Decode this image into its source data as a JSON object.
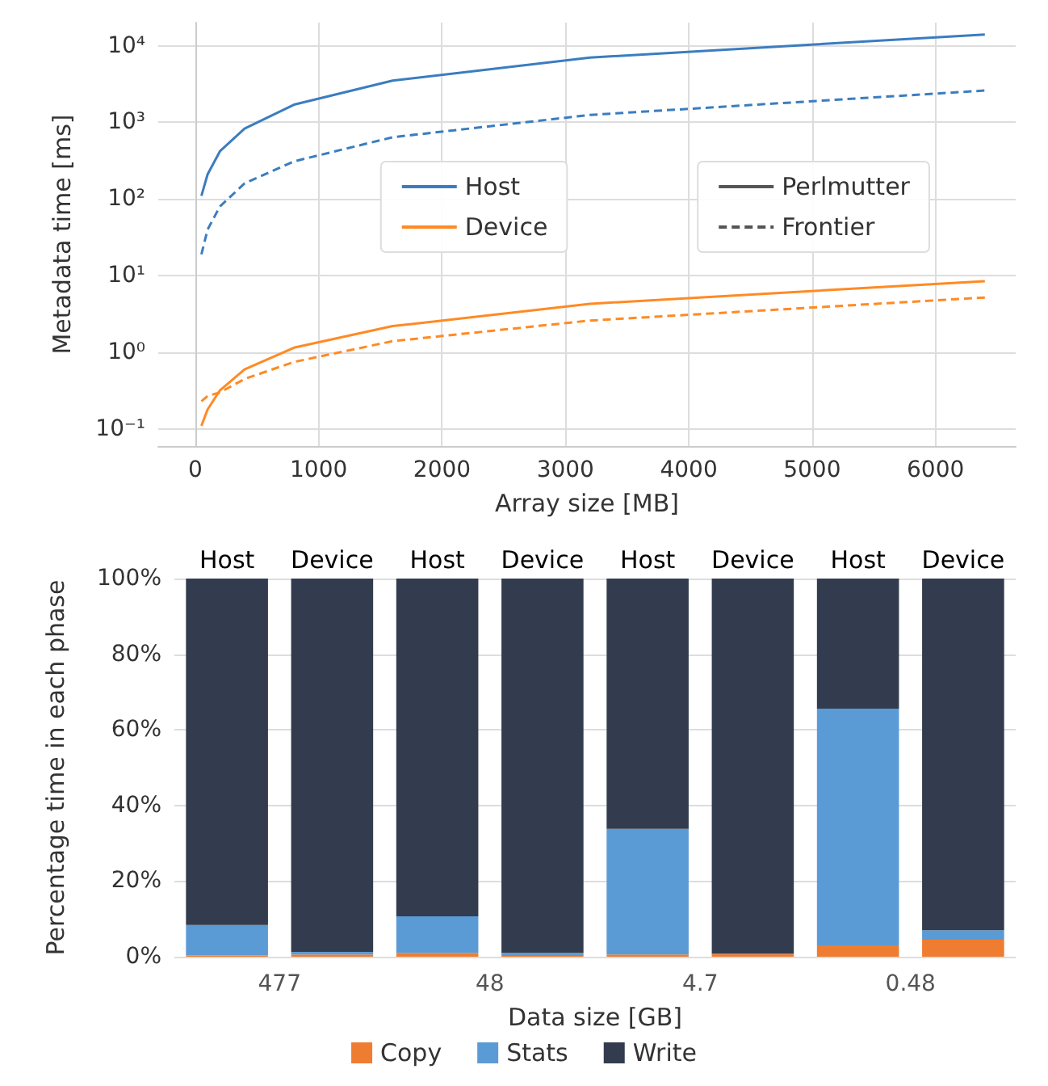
{
  "chart_data": [
    {
      "type": "line",
      "xlabel": "Array size [MB]",
      "ylabel": "Metadata time [ms]",
      "log": "y",
      "grid": true,
      "legend": "center",
      "marker": "none",
      "x": [
        50,
        100,
        200,
        400,
        800,
        1600,
        3200,
        6400
      ],
      "xlim": [
        -300,
        6650
      ],
      "xticks": [
        0,
        1000,
        2000,
        3000,
        4000,
        5000,
        6000
      ],
      "ylim": [
        0.06,
        20000
      ],
      "yticks": [
        {
          "value": 0.1,
          "label": "10⁻¹"
        },
        {
          "value": 1,
          "label": "10⁰"
        },
        {
          "value": 10,
          "label": "10¹"
        },
        {
          "value": 100,
          "label": "10²"
        },
        {
          "value": 1000,
          "label": "10³"
        },
        {
          "value": 10000,
          "label": "10⁴"
        }
      ],
      "series": [
        {
          "name": "Host",
          "color": "#3b7dbf",
          "line_style": "solid",
          "values": [
            110,
            210,
            420,
            830,
            1700,
            3500,
            7000,
            14000
          ]
        },
        {
          "name": "Device",
          "color": "#ff8a24",
          "line_style": "solid",
          "values": [
            0.11,
            0.18,
            0.32,
            0.6,
            1.15,
            2.2,
            4.3,
            8.5
          ]
        },
        {
          "color": "#3b7dbf",
          "line_style": "dashed",
          "values": [
            19,
            40,
            80,
            160,
            310,
            640,
            1250,
            2600
          ]
        },
        {
          "color": "#ff8a24",
          "line_style": "dashed",
          "values": [
            0.23,
            0.27,
            0.3,
            0.45,
            0.75,
            1.4,
            2.6,
            5.2
          ]
        },
        {
          "name": "Perlmutter",
          "color": "#555555",
          "line_style": "solid",
          "values": [
            null,
            null,
            null,
            null,
            null,
            null,
            null,
            null
          ]
        },
        {
          "name": "Frontier",
          "color": "#555555",
          "line_style": "dashed",
          "values": [
            null,
            null,
            null,
            null,
            null,
            null,
            null,
            null
          ]
        }
      ]
    },
    {
      "type": "bar",
      "stacked": true,
      "xlabel": "Data size [GB]",
      "ylabel": "Percentage time in each phase",
      "grid": "y",
      "legend": "bottom",
      "categories": [
        "Host",
        "Device",
        "Host",
        "Device",
        "Host",
        "Device",
        "Host",
        "Device"
      ],
      "annotations": [
        "477",
        "48",
        "4.7",
        "0.48"
      ],
      "ylim": [
        0,
        100
      ],
      "yticks": [
        {
          "value": 0,
          "label": "0%"
        },
        {
          "value": 20,
          "label": "20%"
        },
        {
          "value": 40,
          "label": "40%"
        },
        {
          "value": 60,
          "label": "60%"
        },
        {
          "value": 80,
          "label": "80%"
        },
        {
          "value": 100,
          "label": "100%"
        }
      ],
      "series": [
        {
          "name": "Copy",
          "color": "#ef7d31",
          "values": [
            0.3,
            0.6,
            1.0,
            0.2,
            0.6,
            0.7,
            3.0,
            4.5
          ]
        },
        {
          "name": "Stats",
          "color": "#5b9bd5",
          "values": [
            8.1,
            0.7,
            9.7,
            0.8,
            33.2,
            0.1,
            62.6,
            2.5
          ]
        },
        {
          "name": "Write",
          "color": "#323c4e",
          "values": [
            91.6,
            98.7,
            89.3,
            99.0,
            66.2,
            99.2,
            34.4,
            93.0
          ]
        }
      ]
    }
  ]
}
